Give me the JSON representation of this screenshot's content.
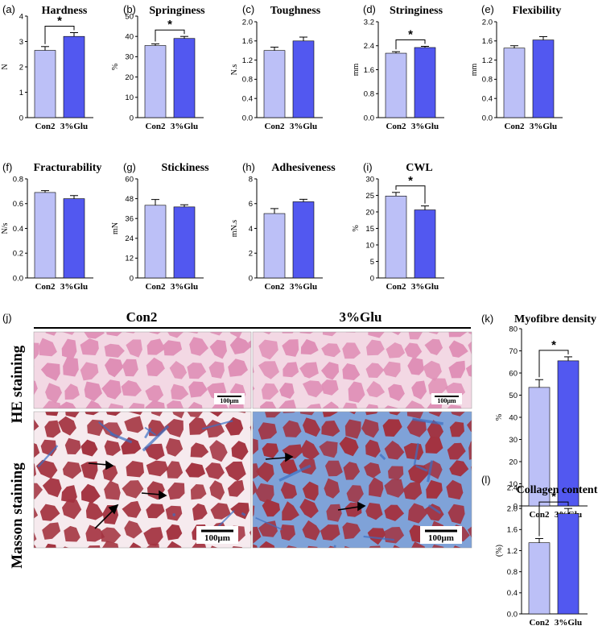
{
  "colors": {
    "con2": "#bcc0f7",
    "glu": "#5258f0",
    "he_bg": "#f3d8e4",
    "he_fiber": "#df8fb6",
    "masson_bg": "#f6eaee",
    "masson_fiber": "#a3323f",
    "collagen": "#3b6fc4"
  },
  "chart_data": [
    {
      "id": "a",
      "panel_label": "(a)",
      "type": "bar",
      "title": "Hardness",
      "ylabel": "N",
      "categories": [
        "Con2",
        "3%Glu"
      ],
      "values": [
        2.65,
        3.2
      ],
      "errors": [
        0.15,
        0.15
      ],
      "ylim": [
        0,
        4
      ],
      "yticks": [
        "0",
        "1",
        "2",
        "3",
        "4"
      ],
      "significance": "*"
    },
    {
      "id": "b",
      "panel_label": "(b)",
      "type": "bar",
      "title": "Springiness",
      "ylabel": "%",
      "categories": [
        "Con2",
        "3%Glu"
      ],
      "values": [
        35.5,
        39
      ],
      "errors": [
        0.8,
        1.0
      ],
      "ylim": [
        0,
        50
      ],
      "yticks": [
        "0",
        "10",
        "20",
        "30",
        "40",
        "50"
      ],
      "significance": "*"
    },
    {
      "id": "c",
      "panel_label": "(c)",
      "type": "bar",
      "title": "Toughness",
      "ylabel": "N.s",
      "categories": [
        "Con2",
        "3%Glu"
      ],
      "values": [
        1.4,
        1.6
      ],
      "errors": [
        0.07,
        0.08
      ],
      "ylim": [
        0,
        2.0
      ],
      "yticks": [
        "0.0",
        "0.4",
        "0.8",
        "1.2",
        "1.6",
        "2.0"
      ],
      "significance": ""
    },
    {
      "id": "d",
      "panel_label": "(d)",
      "type": "bar",
      "title": "Stringiness",
      "ylabel": "mm",
      "categories": [
        "Con2",
        "3%Glu"
      ],
      "values": [
        2.15,
        2.34
      ],
      "errors": [
        0.05,
        0.04
      ],
      "ylim": [
        0,
        3.2
      ],
      "yticks": [
        "0.0",
        "0.8",
        "1.6",
        "2.4",
        "3.2"
      ],
      "significance": "*"
    },
    {
      "id": "e",
      "panel_label": "(e)",
      "type": "bar",
      "title": "Flexibility",
      "ylabel": "mm",
      "categories": [
        "Con2",
        "3%Glu"
      ],
      "values": [
        1.45,
        1.62
      ],
      "errors": [
        0.05,
        0.07
      ],
      "ylim": [
        0,
        2.0
      ],
      "yticks": [
        "0.0",
        "0.4",
        "0.8",
        "1.2",
        "1.6",
        "2.0"
      ],
      "significance": ""
    },
    {
      "id": "f",
      "panel_label": "(f)",
      "type": "bar",
      "title": "Fracturability",
      "ylabel": "N/s",
      "categories": [
        "Con2",
        "3%Glu"
      ],
      "values": [
        0.69,
        0.64
      ],
      "errors": [
        0.015,
        0.025
      ],
      "ylim": [
        0,
        0.8
      ],
      "yticks": [
        "0.0",
        "0.2",
        "0.4",
        "0.6",
        "0.8"
      ],
      "significance": ""
    },
    {
      "id": "g",
      "panel_label": "(g)",
      "type": "bar",
      "title": "Stickiness",
      "ylabel": "mN",
      "categories": [
        "Con2",
        "3%Glu"
      ],
      "values": [
        44,
        43
      ],
      "errors": [
        3.5,
        1.3
      ],
      "ylim": [
        0,
        60
      ],
      "yticks": [
        "0",
        "12",
        "24",
        "36",
        "48",
        "60"
      ],
      "significance": ""
    },
    {
      "id": "h",
      "panel_label": "(h)",
      "type": "bar",
      "title": "Adhesiveness",
      "ylabel": "mN.s",
      "categories": [
        "Con2",
        "3%Glu"
      ],
      "values": [
        5.2,
        6.15
      ],
      "errors": [
        0.4,
        0.2
      ],
      "ylim": [
        0,
        8
      ],
      "yticks": [
        "0",
        "2",
        "4",
        "6",
        "8"
      ],
      "significance": ""
    },
    {
      "id": "i",
      "panel_label": "(i)",
      "type": "bar",
      "title": "CWL",
      "ylabel": "%",
      "categories": [
        "Con2",
        "3%Glu"
      ],
      "values": [
        24.8,
        20.6
      ],
      "errors": [
        1.1,
        1.2
      ],
      "ylim": [
        0,
        30
      ],
      "yticks": [
        "0",
        "5",
        "10",
        "15",
        "20",
        "25",
        "30"
      ],
      "significance": "*"
    },
    {
      "id": "k",
      "panel_label": "(k)",
      "type": "bar",
      "title": "Myofibre density",
      "ylabel": "%",
      "categories": [
        "Con2",
        "3%Glu"
      ],
      "values": [
        53.5,
        65.5
      ],
      "errors": [
        3.5,
        1.8
      ],
      "ylim": [
        0,
        80
      ],
      "yticks": [
        "0",
        "10",
        "20",
        "30",
        "40",
        "50",
        "60",
        "70",
        "80"
      ],
      "significance": "*"
    },
    {
      "id": "l",
      "panel_label": "(l)",
      "type": "bar",
      "title": "Collagen content",
      "ylabel": "(%)",
      "categories": [
        "Con2",
        "3%Glu"
      ],
      "values": [
        1.35,
        1.9
      ],
      "errors": [
        0.08,
        0.1
      ],
      "ylim": [
        0,
        2.4
      ],
      "yticks": [
        "0.0",
        "0.4",
        "0.8",
        "1.2",
        "1.6",
        "2.0",
        "2.4"
      ],
      "significance": "*"
    }
  ],
  "histology": {
    "panel_label": "(j)",
    "columns": [
      "Con2",
      "3%Glu"
    ],
    "rows": [
      "HE staining",
      "Masson staining"
    ],
    "scale_bar": "100μm"
  }
}
